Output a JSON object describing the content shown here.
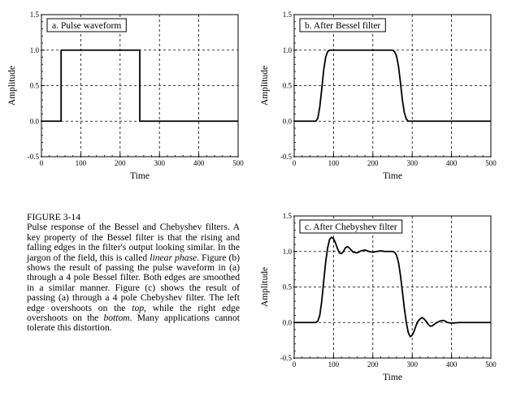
{
  "caption": {
    "figure_label": "FIGURE 3-14",
    "parts": [
      {
        "text": "Pulse response of the Bessel and Chebyshev filters. A key property of the Bessel filter is that the rising and falling edges in the filter's output looking similar. In the jargon of the field, this is called ",
        "em": false
      },
      {
        "text": "linear phase",
        "em": true
      },
      {
        "text": ".  Figure (b) shows the result of passing the pulse waveform in (a) through a 4 pole Bessel filter.  Both edges are smoothed in a similar manner.  Figure (c) shows the result of passing (a) through a 4 pole Chebyshev filter. The left edge overshoots on the ",
        "em": false
      },
      {
        "text": "top",
        "em": true
      },
      {
        "text": ", while the right edge overshoots on the ",
        "em": false
      },
      {
        "text": "bottom",
        "em": true
      },
      {
        "text": ".  Many applications cannot tolerate this distortion.",
        "em": false
      }
    ]
  },
  "chart_data": [
    {
      "id": "a",
      "type": "line",
      "title": "a.  Pulse waveform",
      "xlabel": "Time",
      "ylabel": "Amplitude",
      "xlim": [
        0,
        500
      ],
      "ylim": [
        -0.5,
        1.5
      ],
      "xticks": [
        "0",
        "100",
        "200",
        "300",
        "400",
        "500"
      ],
      "yticks": [
        "-0.5",
        "0.0",
        "0.5",
        "1.0",
        "1.5"
      ],
      "grid": true,
      "series": [
        {
          "color": "#000000",
          "x": [
            0,
            50,
            50,
            250,
            250,
            500
          ],
          "y": [
            0,
            0,
            1,
            1,
            0,
            0
          ]
        }
      ]
    },
    {
      "id": "b",
      "type": "line",
      "title": "b.  After Bessel filter",
      "xlabel": "Time",
      "ylabel": "Amplitude",
      "xlim": [
        0,
        500
      ],
      "ylim": [
        -0.5,
        1.5
      ],
      "xticks": [
        "0",
        "100",
        "200",
        "300",
        "400",
        "500"
      ],
      "yticks": [
        "-0.5",
        "0.0",
        "0.5",
        "1.0",
        "1.5"
      ],
      "grid": true,
      "series": [
        {
          "color": "#000000",
          "x": [
            0,
            55,
            60,
            65,
            70,
            75,
            80,
            85,
            90,
            95,
            100,
            240,
            250,
            255,
            260,
            265,
            270,
            275,
            280,
            285,
            290,
            300,
            500
          ],
          "y": [
            0,
            0,
            0.04,
            0.2,
            0.45,
            0.72,
            0.9,
            0.98,
            1.0,
            1.0,
            1.0,
            1.0,
            1.0,
            0.98,
            0.92,
            0.78,
            0.55,
            0.3,
            0.12,
            0.03,
            0.0,
            0.0,
            0.0
          ]
        }
      ]
    },
    {
      "id": "c",
      "type": "line",
      "title": "c.  After Chebyshev filter",
      "xlabel": "Time",
      "ylabel": "Amplitude",
      "xlim": [
        0,
        500
      ],
      "ylim": [
        -0.5,
        1.5
      ],
      "xticks": [
        "0",
        "100",
        "200",
        "300",
        "400",
        "500"
      ],
      "yticks": [
        "-0.5",
        "0.0",
        "0.5",
        "1.0",
        "1.5"
      ],
      "grid": true,
      "series": [
        {
          "color": "#000000",
          "x": [
            0,
            55,
            60,
            65,
            70,
            75,
            80,
            85,
            90,
            95,
            100,
            105,
            110,
            115,
            120,
            125,
            130,
            135,
            140,
            145,
            150,
            160,
            170,
            180,
            190,
            200,
            210,
            220,
            230,
            240,
            250,
            255,
            260,
            265,
            270,
            275,
            280,
            285,
            290,
            295,
            300,
            305,
            310,
            315,
            320,
            325,
            330,
            335,
            340,
            345,
            350,
            360,
            370,
            380,
            390,
            400,
            420,
            440,
            460,
            480,
            500
          ],
          "y": [
            0,
            0,
            0.02,
            0.1,
            0.3,
            0.58,
            0.85,
            1.05,
            1.17,
            1.2,
            1.18,
            1.12,
            1.04,
            0.98,
            0.97,
            1.0,
            1.05,
            1.07,
            1.05,
            1.02,
            0.99,
            0.98,
            1.01,
            1.02,
            1.0,
            0.99,
            1.0,
            1.01,
            1.0,
            1.0,
            1.0,
            0.99,
            0.95,
            0.85,
            0.67,
            0.44,
            0.2,
            0.0,
            -0.14,
            -0.2,
            -0.18,
            -0.12,
            -0.04,
            0.02,
            0.05,
            0.07,
            0.05,
            0.02,
            -0.02,
            -0.05,
            -0.05,
            -0.01,
            0.02,
            0.03,
            0.0,
            -0.01,
            0.0,
            0.0,
            0.0,
            0.0,
            0.0
          ]
        }
      ]
    }
  ]
}
